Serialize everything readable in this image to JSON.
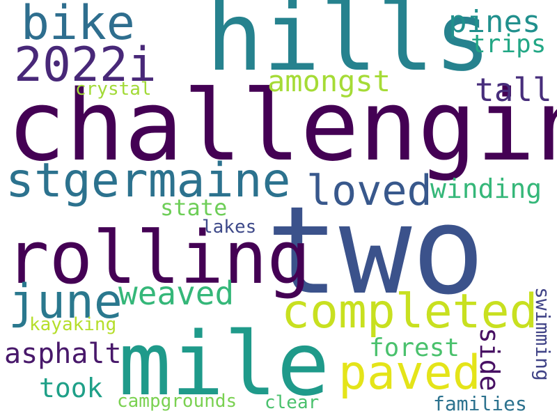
{
  "words": [
    {
      "id": "two",
      "text": "two",
      "color": "#3b528b",
      "orientation": "horizontal"
    },
    {
      "id": "challenging",
      "text": "challenging",
      "color": "#440154",
      "orientation": "horizontal"
    },
    {
      "id": "hills",
      "text": "hills",
      "color": "#26828e",
      "orientation": "horizontal"
    },
    {
      "id": "mile",
      "text": "mile",
      "color": "#1f9a8a",
      "orientation": "horizontal"
    },
    {
      "id": "rolling",
      "text": "rolling",
      "color": "#440154",
      "orientation": "horizontal"
    },
    {
      "id": "stgermaine",
      "text": "stgermaine",
      "color": "#2c728e",
      "orientation": "horizontal"
    },
    {
      "id": "completed",
      "text": "completed",
      "color": "#c8e020",
      "orientation": "horizontal"
    },
    {
      "id": "paved",
      "text": "paved",
      "color": "#e4e419",
      "orientation": "horizontal"
    },
    {
      "id": "bike",
      "text": "bike",
      "color": "#2e6e8e",
      "orientation": "horizontal"
    },
    {
      "id": "2022i",
      "text": "2022i",
      "color": "#482878",
      "orientation": "horizontal"
    },
    {
      "id": "june",
      "text": "june",
      "color": "#2a788e",
      "orientation": "horizontal"
    },
    {
      "id": "loved",
      "text": "loved",
      "color": "#38588c",
      "orientation": "horizontal"
    },
    {
      "id": "weaved",
      "text": "weaved",
      "color": "#35b779",
      "orientation": "horizontal"
    },
    {
      "id": "amongst",
      "text": "amongst",
      "color": "#a5db36",
      "orientation": "horizontal"
    },
    {
      "id": "pines",
      "text": "pines",
      "color": "#21908d",
      "orientation": "horizontal"
    },
    {
      "id": "trips",
      "text": "trips",
      "color": "#22a785",
      "orientation": "horizontal"
    },
    {
      "id": "tall",
      "text": "tall",
      "color": "#472d7b",
      "orientation": "horizontal"
    },
    {
      "id": "winding",
      "text": "winding",
      "color": "#35b779",
      "orientation": "horizontal"
    },
    {
      "id": "state",
      "text": "state",
      "color": "#6ece58",
      "orientation": "horizontal"
    },
    {
      "id": "lakes",
      "text": "lakes",
      "color": "#3e4989",
      "orientation": "horizontal"
    },
    {
      "id": "crystal",
      "text": "crystal",
      "color": "#a2da37",
      "orientation": "horizontal"
    },
    {
      "id": "forest",
      "text": "forest",
      "color": "#4ac16d",
      "orientation": "horizontal"
    },
    {
      "id": "side",
      "text": "side",
      "color": "#471063",
      "orientation": "vertical"
    },
    {
      "id": "swimming",
      "text": "swimming",
      "color": "#414487",
      "orientation": "vertical"
    },
    {
      "id": "kayaking",
      "text": "kayaking",
      "color": "#b5de2b",
      "orientation": "horizontal"
    },
    {
      "id": "asphalt",
      "text": "asphalt",
      "color": "#48186a",
      "orientation": "horizontal"
    },
    {
      "id": "took",
      "text": "took",
      "color": "#1fa088",
      "orientation": "horizontal"
    },
    {
      "id": "campgrounds",
      "text": "campgrounds",
      "color": "#7ad151",
      "orientation": "horizontal"
    },
    {
      "id": "clear",
      "text": "clear",
      "color": "#4ac16d",
      "orientation": "horizontal"
    },
    {
      "id": "families",
      "text": "families",
      "color": "#2c728e",
      "orientation": "horizontal"
    }
  ]
}
